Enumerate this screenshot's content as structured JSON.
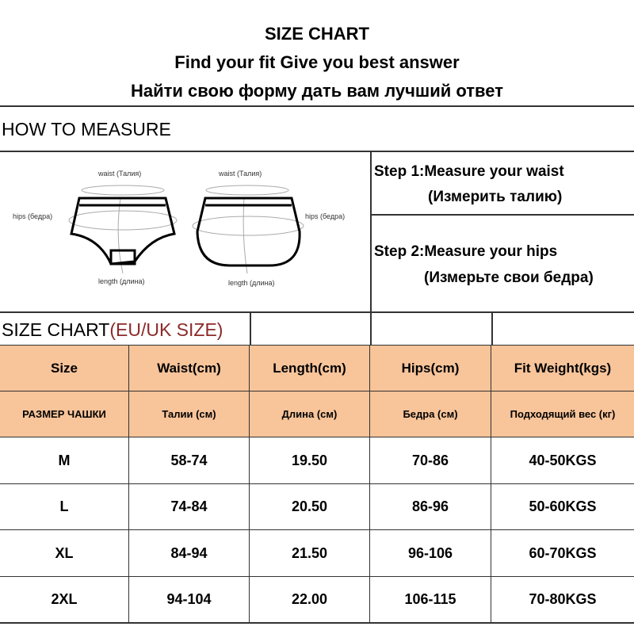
{
  "header": {
    "title": "SIZE CHART",
    "subtitle_en": "Find your fit Give you best answer",
    "subtitle_ru": "Найти свою форму дать вам лучший ответ"
  },
  "measure": {
    "heading": "HOW TO MEASURE",
    "labels": {
      "waist": "waist (Талия)",
      "hips": "hips (бедра)",
      "length": "length (длина)"
    },
    "step1": "Step 1:Measure your waist",
    "step1_ru": "(Измерить талию)",
    "step2": "Step 2:Measure your hips",
    "step2_ru": "(Измерьте свои бедра)"
  },
  "size_chart": {
    "title": "SIZE CHART",
    "title_region": "(EU/UK SIZE)",
    "region_color": "#8b2a2a",
    "header_color": "#f8c49a",
    "columns": [
      "Size",
      "Waist(cm)",
      "Length(cm)",
      "Hips(cm)",
      "Fit  Weight(kgs)"
    ],
    "columns_ru": [
      "РАЗМЕР ЧАШКИ",
      "Талии (см)",
      "Длина (см)",
      "Бедра (см)",
      "Подходящий вес (кг)"
    ],
    "rows": [
      [
        "M",
        "58-74",
        "19.50",
        "70-86",
        "40-50KGS"
      ],
      [
        "L",
        "74-84",
        "20.50",
        "86-96",
        "50-60KGS"
      ],
      [
        "XL",
        "84-94",
        "21.50",
        "96-106",
        "60-70KGS"
      ],
      [
        "2XL",
        "94-104",
        "22.00",
        "106-115",
        "70-80KGS"
      ]
    ]
  }
}
